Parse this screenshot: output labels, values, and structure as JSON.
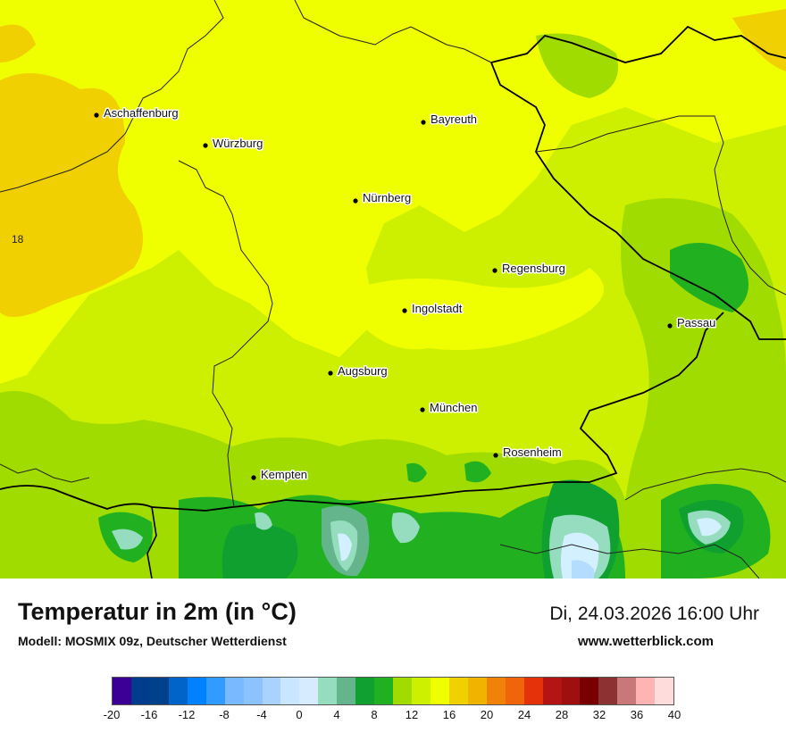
{
  "map": {
    "cities": [
      {
        "name": "Aschaffenburg"
      },
      {
        "name": "Würzburg"
      },
      {
        "name": "Bayreuth"
      },
      {
        "name": "Nürnberg"
      },
      {
        "name": "Regensburg"
      },
      {
        "name": "Ingolstadt"
      },
      {
        "name": "Passau"
      },
      {
        "name": "Augsburg"
      },
      {
        "name": "München"
      },
      {
        "name": "Rosenheim"
      },
      {
        "name": "Kempten"
      }
    ],
    "isoline_label": "18",
    "colors": {
      "band_8_10": "#0fa030",
      "band_10_12": "#20b020",
      "band_12_14": "#a0dc00",
      "band_14_16": "#cdf000",
      "band_16_18": "#f0ff00",
      "band_18_20": "#f0d000",
      "band_4_6": "#96dcbe",
      "band_6_8": "#64b48c",
      "band_2_4": "#d2f0ff",
      "band_0_2": "#b4dcff"
    }
  },
  "footer": {
    "title": "Temperatur in 2m (in °C)",
    "model": "Modell: MOSMIX 09z, Deutscher Wetterdienst",
    "datetime": "Di, 24.03.2026 16:00 Uhr",
    "website": "www.wetterblick.com"
  },
  "colorbar": {
    "colors": [
      "#3c0096",
      "#003c8c",
      "#00418c",
      "#0064c8",
      "#0082ff",
      "#329bff",
      "#78b9ff",
      "#8cc3ff",
      "#aad2ff",
      "#c8e6ff",
      "#d7ebff",
      "#96dcbe",
      "#64b48c",
      "#0fa030",
      "#20b020",
      "#a0dc00",
      "#cdf000",
      "#f0ff00",
      "#f0d000",
      "#f0b400",
      "#f0820a",
      "#f0640a",
      "#e6320a",
      "#b41414",
      "#a00f0f",
      "#780000",
      "#8c3232",
      "#c87878",
      "#ffb4b4",
      "#ffdcdc"
    ],
    "ticks": [
      "-20",
      "-16",
      "-12",
      "-8",
      "-4",
      "0",
      "4",
      "8",
      "12",
      "16",
      "20",
      "24",
      "28",
      "32",
      "36",
      "40"
    ]
  }
}
